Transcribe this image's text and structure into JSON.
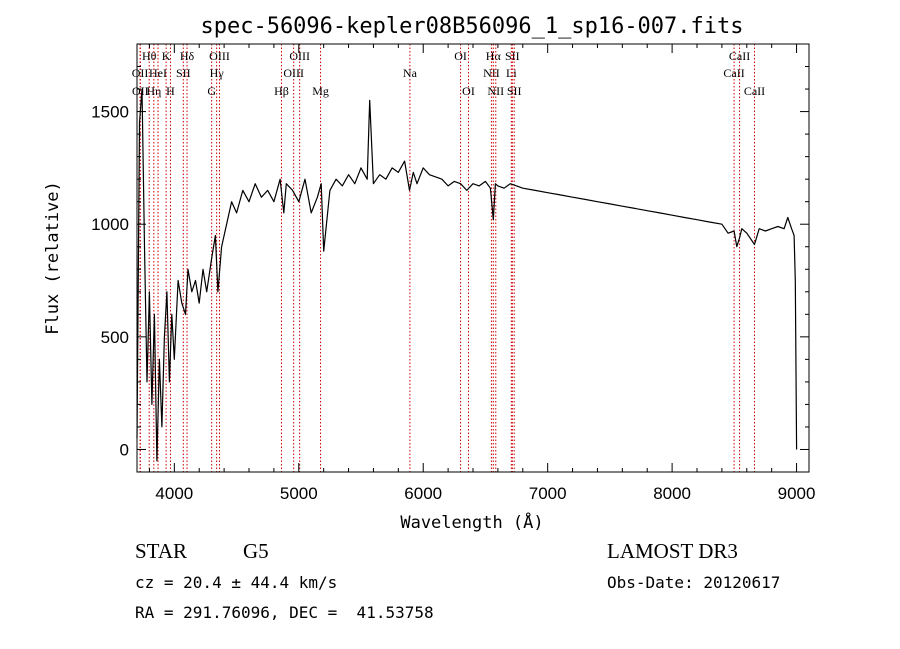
{
  "chart_data": {
    "type": "line",
    "title": "spec-56096-kepler08B56096_1_sp16-007.fits",
    "xlabel": "Wavelength (Å)",
    "ylabel": "Flux (relative)",
    "xlim": [
      3700,
      9100
    ],
    "ylim": [
      -100,
      1800
    ],
    "x_ticks": [
      4000,
      5000,
      6000,
      7000,
      8000,
      9000
    ],
    "x_tick_labels": [
      "4000",
      "5000",
      "6000",
      "7000",
      "8000",
      "9000"
    ],
    "y_ticks": [
      0,
      500,
      1000,
      1500
    ],
    "y_tick_labels": [
      "0",
      "500",
      "1000",
      "1500"
    ],
    "series": [
      {
        "name": "spectrum",
        "x": [
          3700,
          3720,
          3740,
          3760,
          3780,
          3800,
          3820,
          3840,
          3860,
          3880,
          3900,
          3920,
          3940,
          3960,
          3980,
          4000,
          4030,
          4060,
          4090,
          4110,
          4140,
          4170,
          4200,
          4230,
          4260,
          4300,
          4330,
          4350,
          4380,
          4420,
          4460,
          4500,
          4550,
          4600,
          4650,
          4700,
          4750,
          4800,
          4850,
          4880,
          4900,
          4950,
          5000,
          5050,
          5100,
          5150,
          5180,
          5200,
          5250,
          5300,
          5350,
          5400,
          5450,
          5500,
          5550,
          5570,
          5600,
          5650,
          5700,
          5750,
          5800,
          5850,
          5890,
          5920,
          5950,
          6000,
          6050,
          6100,
          6150,
          6200,
          6250,
          6300,
          6350,
          6400,
          6450,
          6500,
          6540,
          6563,
          6580,
          6600,
          6650,
          6700,
          6750,
          6800,
          6900,
          7000,
          7100,
          7200,
          7300,
          7400,
          7500,
          7600,
          7700,
          7800,
          7900,
          8000,
          8100,
          8200,
          8300,
          8400,
          8450,
          8498,
          8520,
          8542,
          8560,
          8600,
          8662,
          8700,
          8750,
          8800,
          8850,
          8900,
          8930,
          8960,
          8980,
          8990,
          9000
        ],
        "y": [
          50,
          1450,
          1600,
          900,
          300,
          700,
          200,
          600,
          -50,
          400,
          100,
          500,
          700,
          300,
          600,
          400,
          750,
          650,
          600,
          800,
          700,
          750,
          650,
          800,
          700,
          850,
          950,
          700,
          900,
          1000,
          1100,
          1050,
          1150,
          1100,
          1180,
          1120,
          1150,
          1100,
          1200,
          1050,
          1180,
          1150,
          1100,
          1200,
          1050,
          1120,
          1180,
          880,
          1150,
          1200,
          1170,
          1220,
          1180,
          1250,
          1200,
          1550,
          1180,
          1220,
          1200,
          1250,
          1230,
          1280,
          1150,
          1230,
          1180,
          1250,
          1220,
          1210,
          1200,
          1170,
          1190,
          1180,
          1150,
          1180,
          1170,
          1190,
          1160,
          1020,
          1180,
          1170,
          1160,
          1180,
          1170,
          1160,
          1150,
          1140,
          1130,
          1120,
          1110,
          1100,
          1090,
          1080,
          1070,
          1060,
          1050,
          1040,
          1030,
          1020,
          1010,
          1000,
          960,
          970,
          900,
          940,
          980,
          960,
          910,
          980,
          970,
          980,
          990,
          980,
          1030,
          980,
          950,
          750,
          0
        ]
      }
    ],
    "line_markers": [
      {
        "x": 3725,
        "label": "OII",
        "row": 1
      },
      {
        "x": 3727,
        "label": "OII",
        "row": 2
      },
      {
        "x": 3798,
        "label": "Hθ",
        "row": 0
      },
      {
        "x": 3835,
        "label": "Hη",
        "row": 2
      },
      {
        "x": 3869,
        "label": "HeI",
        "row": 1
      },
      {
        "x": 3934,
        "label": "K",
        "row": 0
      },
      {
        "x": 3969,
        "label": "H",
        "row": 2
      },
      {
        "x": 4072,
        "label": "SII",
        "row": 1
      },
      {
        "x": 4102,
        "label": "Hδ",
        "row": 0
      },
      {
        "x": 4300,
        "label": "G",
        "row": 2
      },
      {
        "x": 4340,
        "label": "Hγ",
        "row": 1
      },
      {
        "x": 4363,
        "label": "OIII",
        "row": 0
      },
      {
        "x": 4861,
        "label": "Hβ",
        "row": 2
      },
      {
        "x": 4959,
        "label": "OIII",
        "row": 1
      },
      {
        "x": 5007,
        "label": "OIII",
        "row": 0
      },
      {
        "x": 5175,
        "label": "Mg",
        "row": 2
      },
      {
        "x": 5893,
        "label": "Na",
        "row": 1
      },
      {
        "x": 6300,
        "label": "OI",
        "row": 0
      },
      {
        "x": 6364,
        "label": "OI",
        "row": 2
      },
      {
        "x": 6548,
        "label": "NII",
        "row": 1
      },
      {
        "x": 6563,
        "label": "Hα",
        "row": 0
      },
      {
        "x": 6583,
        "label": "NII",
        "row": 2
      },
      {
        "x": 6708,
        "label": "Li",
        "row": 1
      },
      {
        "x": 6716,
        "label": "SII",
        "row": 0
      },
      {
        "x": 6731,
        "label": "SII",
        "row": 2
      },
      {
        "x": 8498,
        "label": "CaII",
        "row": 1
      },
      {
        "x": 8542,
        "label": "CaII",
        "row": 0
      },
      {
        "x": 8662,
        "label": "CaII",
        "row": 2
      }
    ]
  },
  "info": {
    "object_class": "STAR",
    "subclass": "G5",
    "survey": "LAMOST DR3",
    "redshift_line": "cz = 20.4 ± 44.4 km/s",
    "obs_date_line": "Obs-Date: 20120617",
    "coords_line": "RA = 291.76096, DEC =  41.53758"
  },
  "colors": {
    "line": "#000000",
    "marker": "#cc0000",
    "axes": "#000000"
  }
}
